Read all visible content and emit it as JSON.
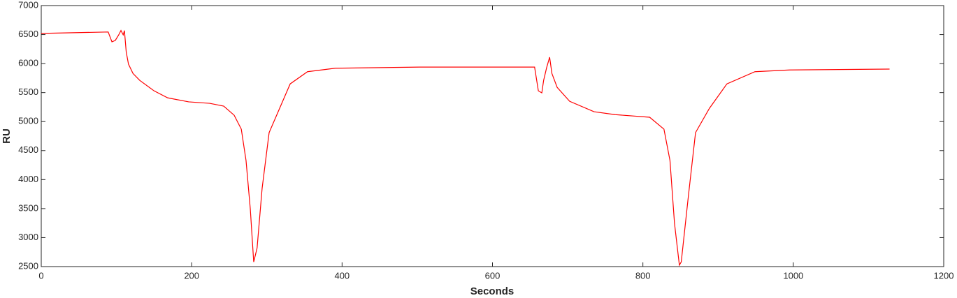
{
  "chart_data": {
    "type": "line",
    "xlabel": "Seconds",
    "ylabel": "RU",
    "x": [
      0,
      89,
      94,
      98.5,
      103,
      106,
      109,
      110.6,
      113,
      116,
      122,
      131,
      150,
      168,
      196,
      224,
      242.6,
      256.5,
      266,
      272.3,
      278,
      282.5,
      287,
      293.7,
      303,
      317,
      331,
      354,
      391,
      503,
      656,
      661,
      665.6,
      668,
      672,
      676,
      679,
      686,
      702.6,
      735,
      763,
      809,
      828,
      836,
      842,
      848.5,
      851,
      860.6,
      870,
      888.5,
      911.7,
      949,
      995,
      1128
    ],
    "series": [
      {
        "name": "RU",
        "color": "#ff0000",
        "values": [
          6520,
          6545,
          6375,
          6400,
          6495,
          6570,
          6495,
          6570,
          6200,
          5990,
          5830,
          5710,
          5530,
          5410,
          5340,
          5315,
          5267,
          5110,
          4870,
          4330,
          3490,
          2580,
          2820,
          3850,
          4810,
          5230,
          5650,
          5860,
          5920,
          5940,
          5940,
          5530,
          5495,
          5710,
          5930,
          6110,
          5830,
          5590,
          5350,
          5170,
          5120,
          5075,
          4870,
          4330,
          3250,
          2525,
          2580,
          3730,
          4810,
          5230,
          5650,
          5860,
          5890,
          5905
        ]
      }
    ],
    "xlim": [
      0,
      1200
    ],
    "xticks": [
      0,
      200,
      400,
      600,
      800,
      1000,
      1200
    ],
    "ylim": [
      2500,
      7000
    ],
    "yticks": [
      2500,
      3000,
      3500,
      4000,
      4500,
      5000,
      5500,
      6000,
      6500,
      7000
    ]
  }
}
